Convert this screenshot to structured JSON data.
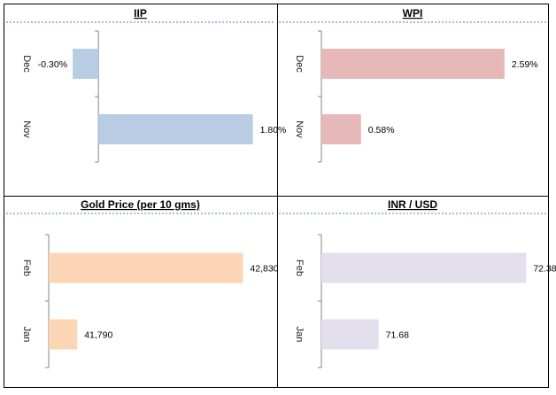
{
  "chart_data": [
    {
      "type": "bar",
      "orientation": "horizontal",
      "title": "IIP",
      "categories": [
        "Dec",
        "Nov"
      ],
      "values": [
        -0.3,
        1.8
      ],
      "value_labels": [
        "-0.30%",
        "1.80%"
      ],
      "color": "#b8cce4",
      "xlim": [
        -0.6,
        2.0
      ]
    },
    {
      "type": "bar",
      "orientation": "horizontal",
      "title": "WPI",
      "categories": [
        "Dec",
        "Nov"
      ],
      "values": [
        2.59,
        0.58
      ],
      "value_labels": [
        "2.59%",
        "0.58%"
      ],
      "color": "#e6b9b8",
      "xlim": [
        0,
        3.1
      ]
    },
    {
      "type": "bar",
      "orientation": "horizontal",
      "title": "Gold Price (per 10 gms)",
      "categories": [
        "Feb",
        "Jan"
      ],
      "values": [
        42830,
        41790
      ],
      "value_labels": [
        "42,830",
        "41,790"
      ],
      "color": "#fcd5b4",
      "xlim": [
        41600,
        43000
      ]
    },
    {
      "type": "bar",
      "orientation": "horizontal",
      "title": "INR / USD",
      "categories": [
        "Feb",
        "Jan"
      ],
      "values": [
        72.38,
        71.68
      ],
      "value_labels": [
        "72.38",
        "71.68"
      ],
      "color": "#e4dfec",
      "xlim": [
        71.4,
        72.45
      ]
    }
  ]
}
